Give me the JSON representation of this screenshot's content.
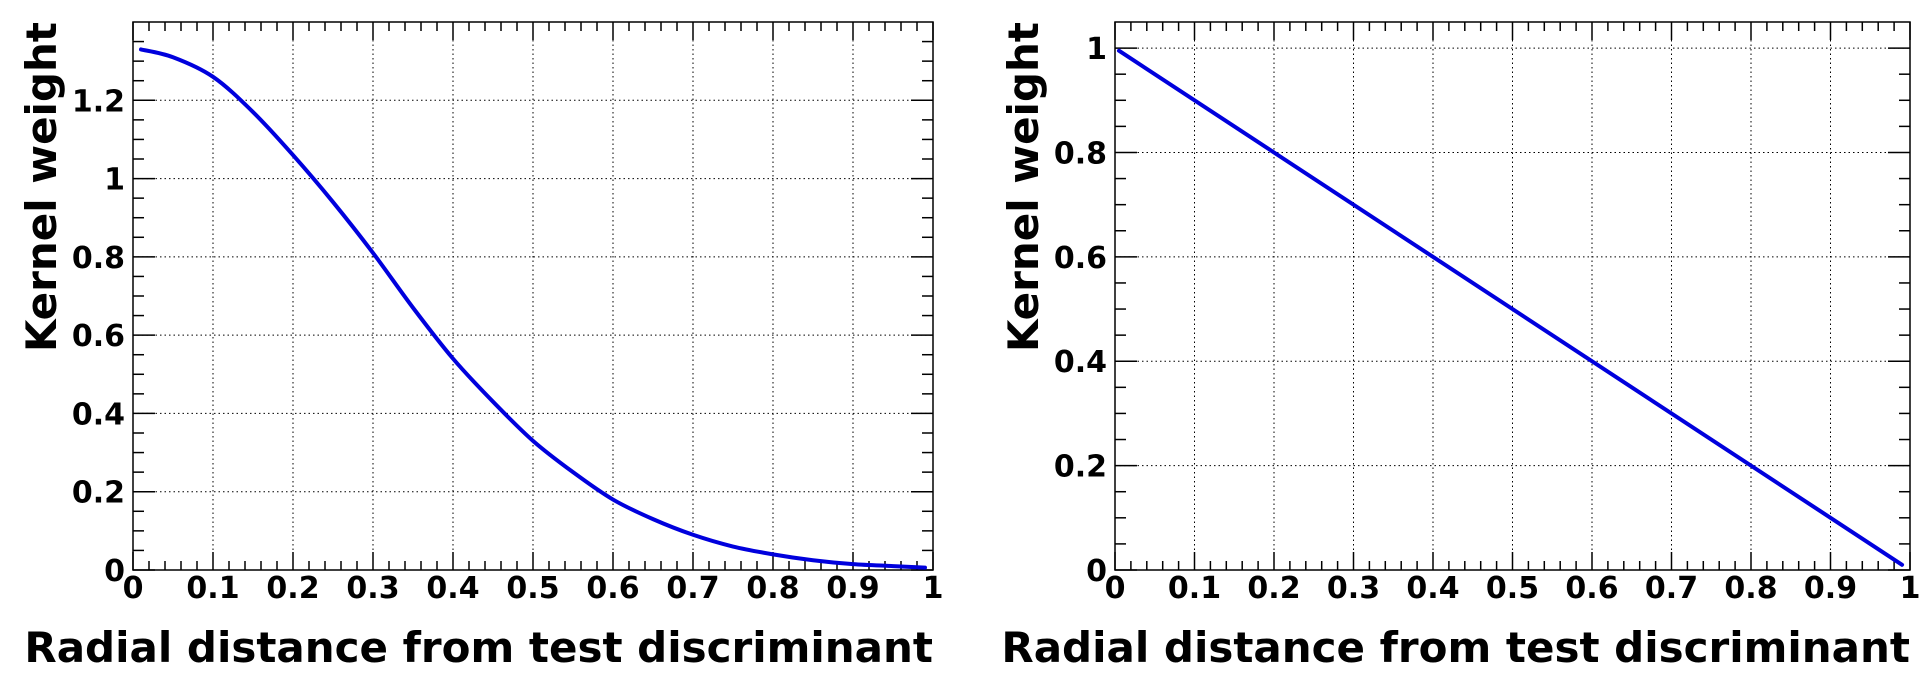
{
  "chart_data": [
    {
      "type": "line",
      "title": "",
      "xlabel": "Radial distance from test discriminant",
      "ylabel": "Kernel weight",
      "xlim": [
        0,
        1
      ],
      "ylim": [
        0,
        1.4
      ],
      "grid": true,
      "x_ticks": [
        "0",
        "0.1",
        "0.2",
        "0.3",
        "0.4",
        "0.5",
        "0.6",
        "0.7",
        "0.8",
        "0.9",
        "1"
      ],
      "y_ticks": [
        "0",
        "0.2",
        "0.4",
        "0.6",
        "0.8",
        "1",
        "1.2"
      ],
      "series": [
        {
          "color": "#0000dd",
          "x": [
            0.01,
            0.05,
            0.1,
            0.15,
            0.2,
            0.25,
            0.3,
            0.35,
            0.4,
            0.45,
            0.5,
            0.55,
            0.6,
            0.65,
            0.7,
            0.75,
            0.8,
            0.85,
            0.9,
            0.95,
            0.99
          ],
          "y": [
            1.33,
            1.31,
            1.26,
            1.17,
            1.06,
            0.94,
            0.81,
            0.67,
            0.54,
            0.43,
            0.33,
            0.25,
            0.18,
            0.13,
            0.09,
            0.06,
            0.04,
            0.025,
            0.015,
            0.01,
            0.006
          ]
        }
      ]
    },
    {
      "type": "line",
      "title": "",
      "xlabel": "Radial distance from test discriminant",
      "ylabel": "Kernel weight",
      "xlim": [
        0,
        1
      ],
      "ylim": [
        0,
        1.05
      ],
      "grid": true,
      "x_ticks": [
        "0",
        "0.1",
        "0.2",
        "0.3",
        "0.4",
        "0.5",
        "0.6",
        "0.7",
        "0.8",
        "0.9",
        "1"
      ],
      "y_ticks": [
        "0",
        "0.2",
        "0.4",
        "0.6",
        "0.8",
        "1"
      ],
      "series": [
        {
          "color": "#0000dd",
          "x": [
            0.005,
            0.99
          ],
          "y": [
            0.995,
            0.01
          ]
        }
      ]
    }
  ]
}
